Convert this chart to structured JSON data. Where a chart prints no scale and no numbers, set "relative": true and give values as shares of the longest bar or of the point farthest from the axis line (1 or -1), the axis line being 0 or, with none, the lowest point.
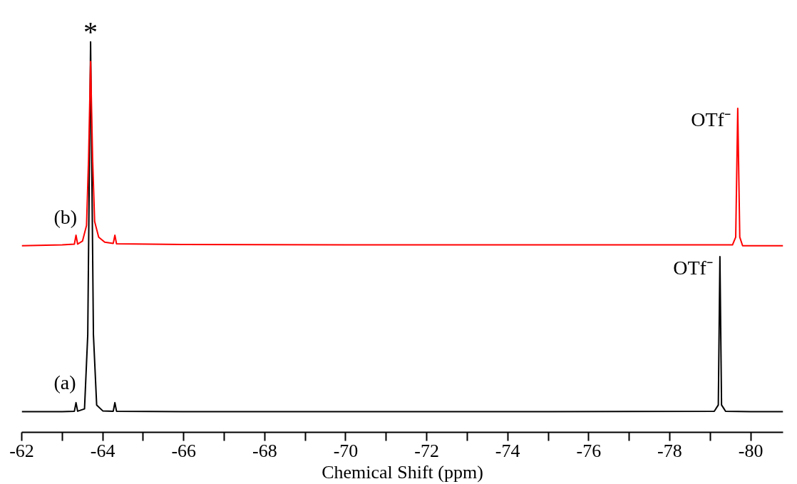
{
  "chart_data": {
    "type": "line",
    "relative": true,
    "xlabel": "Chemical Shift (ppm)",
    "xlim": [
      -62,
      -80.8
    ],
    "xticks": [
      -62,
      {
        "value": -63,
        "label": null
      },
      -64,
      {
        "value": -65,
        "label": null
      },
      -66,
      {
        "value": -67,
        "label": null
      },
      -68,
      {
        "value": -69,
        "label": null
      },
      -70,
      {
        "value": -71,
        "label": null
      },
      -72,
      {
        "value": -73,
        "label": null
      },
      -74,
      {
        "value": -75,
        "label": null
      },
      -76,
      {
        "value": -77,
        "label": null
      },
      -78,
      {
        "value": -79,
        "label": null
      },
      -80
    ],
    "grid": false,
    "marker": "none",
    "line_style": "solid",
    "series": [
      {
        "name": "(a)",
        "color": "#000000",
        "x": [
          -62,
          -63.0,
          -63.3,
          -63.34,
          -63.38,
          -63.55,
          -63.63,
          -63.7,
          -63.77,
          -63.85,
          -64.0,
          -64.26,
          -64.3,
          -64.34,
          -66,
          -70,
          -75,
          -79.1,
          -79.2,
          -79.24,
          -79.28,
          -79.38,
          -80,
          -80.8
        ],
        "values": [
          0.053,
          0.053,
          0.054,
          0.076,
          0.054,
          0.06,
          0.25,
          1.0,
          0.25,
          0.07,
          0.055,
          0.054,
          0.076,
          0.054,
          0.053,
          0.053,
          0.053,
          0.054,
          0.07,
          0.45,
          0.07,
          0.054,
          0.053,
          0.053
        ]
      },
      {
        "name": "(b)",
        "color": "#ff0000",
        "x": [
          -62,
          -63.0,
          -63.3,
          -63.34,
          -63.38,
          -63.5,
          -63.6,
          -63.65,
          -63.7,
          -63.75,
          -63.8,
          -63.9,
          -64.05,
          -64.26,
          -64.3,
          -64.34,
          -66,
          -70,
          -75,
          -79.55,
          -79.63,
          -79.68,
          -79.73,
          -79.8,
          -80.8
        ],
        "values": [
          0.478,
          0.48,
          0.482,
          0.505,
          0.482,
          0.49,
          0.53,
          0.7,
          0.95,
          0.7,
          0.54,
          0.5,
          0.487,
          0.484,
          0.505,
          0.483,
          0.481,
          0.48,
          0.48,
          0.48,
          0.5,
          0.83,
          0.5,
          0.478,
          0.478
        ]
      }
    ],
    "annotations": [
      {
        "text": "*",
        "x": -63.7,
        "y": 1.0
      },
      {
        "text": "OTf⁻",
        "x": -79.68,
        "y": 0.83
      },
      {
        "text": "OTf⁻",
        "x": -79.24,
        "y": 0.45
      }
    ]
  }
}
